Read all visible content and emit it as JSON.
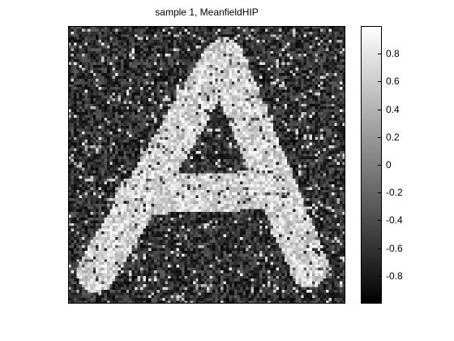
{
  "chart_data": {
    "type": "heatmap",
    "title": "sample 1, MeanfieldHIP",
    "xlabel": "",
    "ylabel": "",
    "colormap": "gray",
    "clim": [
      -1,
      1
    ],
    "colorbar_ticks": [
      0.8,
      0.6,
      0.4,
      0.2,
      0,
      -0.2,
      -0.4,
      -0.6,
      -0.8
    ],
    "colorbar_tick_labels": [
      "0.8",
      "0.6",
      "0.4",
      "0.2",
      "0",
      "-0.2",
      "-0.4",
      "-0.6",
      "-0.8"
    ],
    "grid_size": [
      100,
      100
    ],
    "background_mean": -0.6,
    "foreground_mean": 0.65,
    "noise_level": 0.35,
    "content_description_shape": "letter A"
  }
}
